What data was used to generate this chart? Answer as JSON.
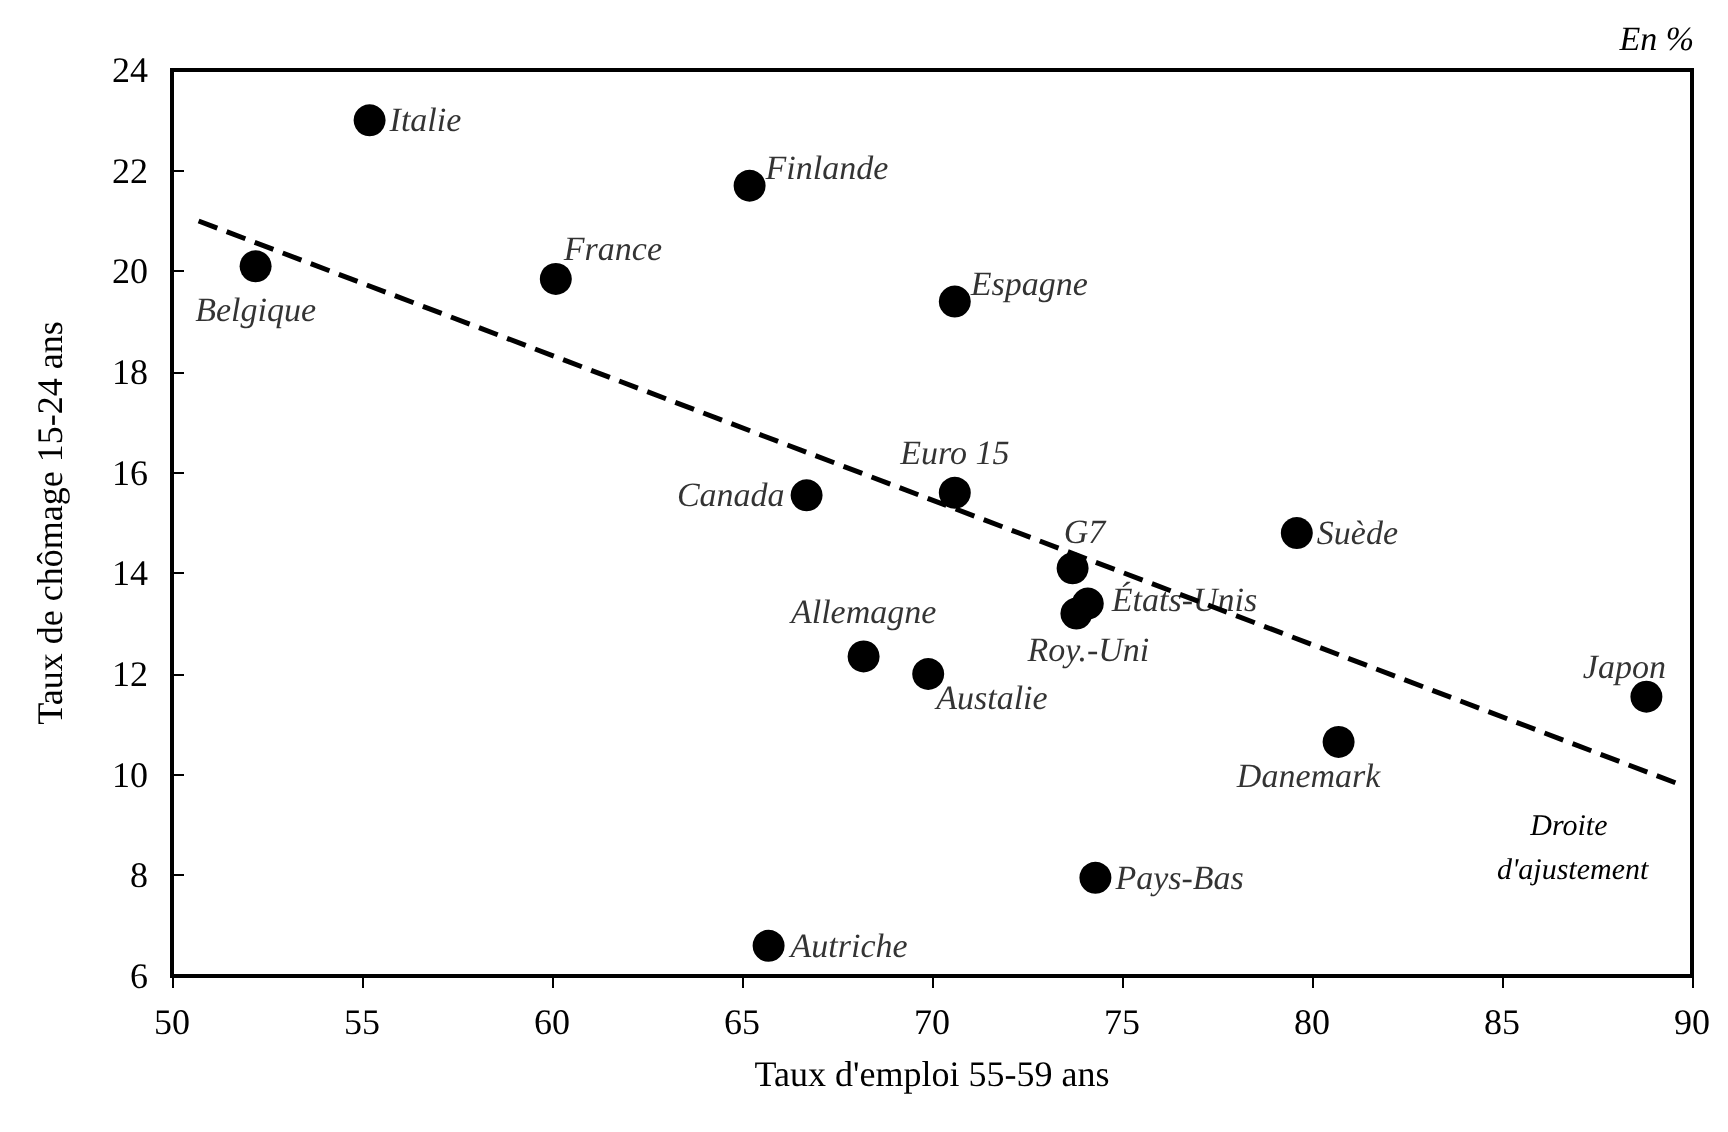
{
  "chart_data": {
    "type": "scatter",
    "subtitle": "En %",
    "xlabel": "Taux d'emploi 55-59 ans",
    "ylabel": "Taux de chômage 15-24 ans",
    "x": [
      55.2,
      65.2,
      52.2,
      60.1,
      70.6,
      70.6,
      66.7,
      73.7,
      74.1,
      73.8,
      79.6,
      68.2,
      69.9,
      88.8,
      80.7,
      74.3,
      65.7
    ],
    "series": [
      {
        "color": "#000000",
        "marker": "circle",
        "values": [
          23.0,
          21.7,
          20.1,
          19.85,
          19.4,
          15.6,
          15.55,
          14.1,
          13.4,
          13.2,
          14.8,
          12.35,
          12.0,
          11.55,
          10.65,
          7.95,
          6.6
        ]
      },
      {
        "type": "line",
        "name": "Droite d'ajustement",
        "color": "#000000",
        "line_style": "dashed",
        "marker": "none",
        "x": [
          50.7,
          89.7
        ],
        "values": [
          21.0,
          9.8
        ]
      }
    ],
    "annotations": [
      {
        "text": "Italie",
        "x": 55.2,
        "y": 23.0
      },
      {
        "text": "Finlande",
        "x": 65.2,
        "y": 21.7
      },
      {
        "text": "Belgique",
        "x": 52.2,
        "y": 20.1
      },
      {
        "text": "France",
        "x": 60.1,
        "y": 19.85
      },
      {
        "text": "Espagne",
        "x": 70.6,
        "y": 19.4
      },
      {
        "text": "Euro 15",
        "x": 70.6,
        "y": 15.6
      },
      {
        "text": "Canada",
        "x": 66.7,
        "y": 15.55
      },
      {
        "text": "G7",
        "x": 73.7,
        "y": 14.1
      },
      {
        "text": "États-Unis",
        "x": 74.1,
        "y": 13.4
      },
      {
        "text": "Roy.-Uni",
        "x": 73.8,
        "y": 13.2
      },
      {
        "text": "Suède",
        "x": 79.6,
        "y": 14.8
      },
      {
        "text": "Allemagne",
        "x": 68.2,
        "y": 12.35
      },
      {
        "text": "Austalie",
        "x": 69.9,
        "y": 12.0
      },
      {
        "text": "Japon",
        "x": 88.8,
        "y": 11.55
      },
      {
        "text": "Danemark",
        "x": 80.7,
        "y": 10.65
      },
      {
        "text": "Pays-Bas",
        "x": 74.3,
        "y": 7.95
      },
      {
        "text": "Autriche",
        "x": 65.7,
        "y": 6.6
      }
    ],
    "xlim": [
      50,
      90
    ],
    "xticks": [
      50,
      55,
      60,
      65,
      70,
      75,
      80,
      85,
      90
    ],
    "ylim": [
      6,
      24
    ],
    "yticks": [
      6,
      8,
      10,
      12,
      14,
      16,
      18,
      20,
      22,
      24
    ],
    "grid": false,
    "legend": false
  }
}
